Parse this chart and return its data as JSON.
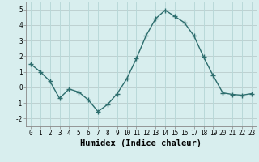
{
  "x": [
    0,
    1,
    2,
    3,
    4,
    5,
    6,
    7,
    8,
    9,
    10,
    11,
    12,
    13,
    14,
    15,
    16,
    17,
    18,
    19,
    20,
    21,
    22,
    23
  ],
  "y": [
    1.5,
    1.0,
    0.4,
    -0.7,
    -0.1,
    -0.3,
    -0.8,
    -1.55,
    -1.1,
    -0.4,
    0.55,
    1.85,
    3.3,
    4.4,
    4.95,
    4.55,
    4.15,
    3.3,
    1.95,
    0.75,
    -0.35,
    -0.45,
    -0.5,
    -0.4
  ],
  "line_color": "#2d6e6e",
  "marker": "D",
  "marker_size": 2.0,
  "bg_color": "#d8eeee",
  "grid_color": "#b8d8d8",
  "grid_color_major": "#c0b8b8",
  "xlabel": "Humidex (Indice chaleur)",
  "xlabel_fontsize": 7.5,
  "ylim": [
    -2.5,
    5.5
  ],
  "xlim": [
    -0.5,
    23.5
  ],
  "yticks": [
    -2,
    -1,
    0,
    1,
    2,
    3,
    4,
    5
  ],
  "xticks": [
    0,
    1,
    2,
    3,
    4,
    5,
    6,
    7,
    8,
    9,
    10,
    11,
    12,
    13,
    14,
    15,
    16,
    17,
    18,
    19,
    20,
    21,
    22,
    23
  ],
  "tick_fontsize": 5.5,
  "line_width": 1.0
}
